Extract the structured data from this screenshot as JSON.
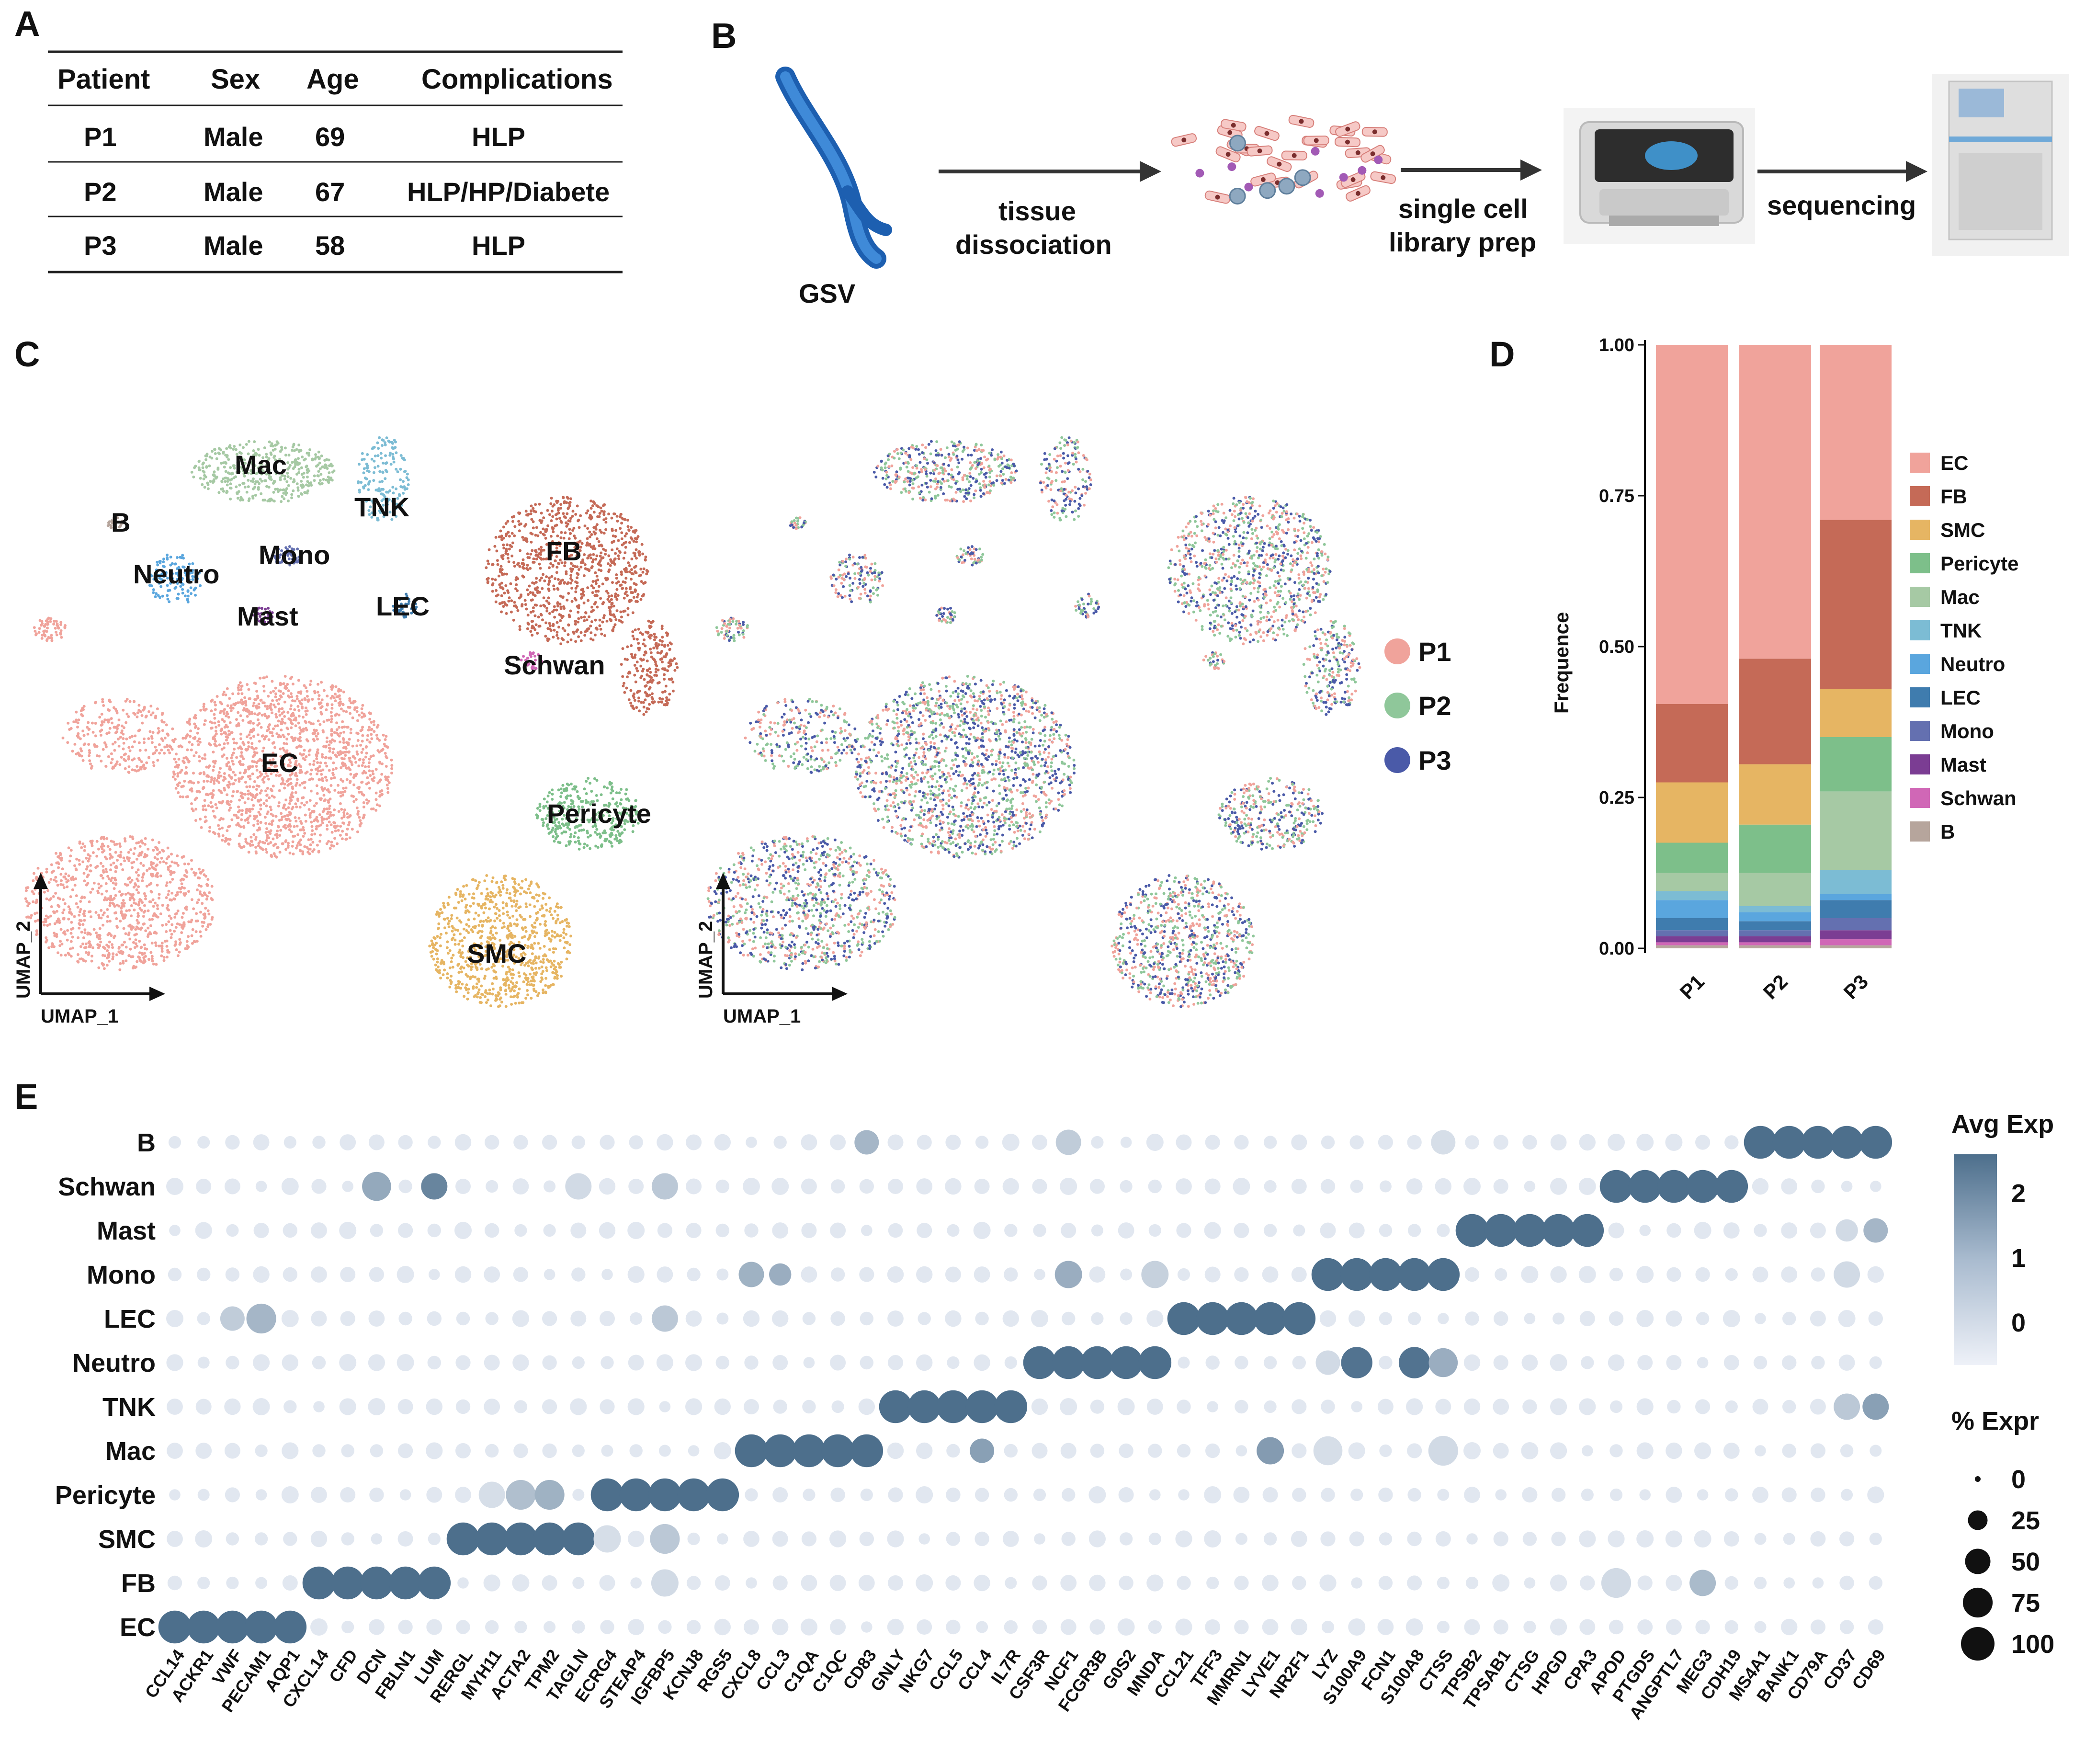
{
  "panels": {
    "a": "A",
    "b": "B",
    "c": "C",
    "d": "D",
    "e": "E"
  },
  "table": {
    "headers": [
      "Patient",
      "Sex",
      "Age",
      "Complications"
    ],
    "rows": [
      [
        "P1",
        "Male",
        "69",
        "HLP"
      ],
      [
        "P2",
        "Male",
        "67",
        "HLP/HP/Diabete"
      ],
      [
        "P3",
        "Male",
        "58",
        "HLP"
      ]
    ]
  },
  "workflow": {
    "gsv": "GSV",
    "step1_line1": "tissue",
    "step1_line2": "dissociation",
    "step2_line1": "single cell",
    "step2_line2": "library prep",
    "step3": "sequencing"
  },
  "umap": {
    "xlabel": "UMAP_1",
    "ylabel": "UMAP_2",
    "clusters": [
      "Mac",
      "TNK",
      "B",
      "Mono",
      "Neutro",
      "Mast",
      "LEC",
      "FB",
      "Schwan",
      "EC",
      "Pericyte",
      "SMC"
    ],
    "patient_legend": [
      "P1",
      "P2",
      "P3"
    ],
    "patient_colors": [
      "#f0a39b",
      "#8fc79a",
      "#4a5aa8"
    ]
  },
  "colors": {
    "EC": "#f0a39b",
    "FB": "#c56a57",
    "SMC": "#e6b563",
    "Pericyte": "#7dbf8a",
    "Mac": "#a6c9a4",
    "TNK": "#7cbcd4",
    "Neutro": "#5aa6de",
    "LEC": "#3f7cae",
    "Mono": "#6470b0",
    "Mast": "#7b3d93",
    "Schwan": "#d067b6",
    "B": "#b6a59c",
    "dot_low": "#e8ecf4",
    "dot_high": "#4d6f8c"
  },
  "chart_data": [
    {
      "type": "bar",
      "subtype": "stacked-proportion",
      "categories": [
        "P1",
        "P2",
        "P3"
      ],
      "ylabel": "Frequence",
      "xlabel": "",
      "ylim": [
        0,
        1
      ],
      "yticks": [
        "0.00",
        "0.25",
        "0.50",
        "0.75",
        "1.00"
      ],
      "legend": [
        "EC",
        "FB",
        "SMC",
        "Pericyte",
        "Mac",
        "TNK",
        "Neutro",
        "LEC",
        "Mono",
        "Mast",
        "Schwan",
        "B"
      ],
      "series": [
        {
          "name": "B",
          "values": [
            0.005,
            0.005,
            0.005
          ]
        },
        {
          "name": "Schwan",
          "values": [
            0.005,
            0.005,
            0.01
          ]
        },
        {
          "name": "Mast",
          "values": [
            0.01,
            0.01,
            0.015
          ]
        },
        {
          "name": "Mono",
          "values": [
            0.01,
            0.01,
            0.02
          ]
        },
        {
          "name": "LEC",
          "values": [
            0.02,
            0.015,
            0.03
          ]
        },
        {
          "name": "Neutro",
          "values": [
            0.03,
            0.015,
            0.01
          ]
        },
        {
          "name": "TNK",
          "values": [
            0.015,
            0.01,
            0.04
          ]
        },
        {
          "name": "Mac",
          "values": [
            0.03,
            0.055,
            0.13
          ]
        },
        {
          "name": "Pericyte",
          "values": [
            0.05,
            0.08,
            0.09
          ]
        },
        {
          "name": "SMC",
          "values": [
            0.1,
            0.1,
            0.08
          ]
        },
        {
          "name": "FB",
          "values": [
            0.13,
            0.175,
            0.28
          ]
        },
        {
          "name": "EC",
          "values": [
            0.595,
            0.52,
            0.29
          ]
        }
      ]
    },
    {
      "type": "dotplot",
      "title": "",
      "rows": [
        "B",
        "Schwan",
        "Mast",
        "Mono",
        "LEC",
        "Neutro",
        "TNK",
        "Mac",
        "Pericyte",
        "SMC",
        "FB",
        "EC"
      ],
      "genes": [
        "CCL14",
        "ACKR1",
        "VWF",
        "PECAM1",
        "AQP1",
        "CXCL14",
        "CFD",
        "DCN",
        "FBLN1",
        "LUM",
        "RERGL",
        "MYH11",
        "ACTA2",
        "TPM2",
        "TAGLN",
        "ECRG4",
        "STEAP4",
        "IGFBP5",
        "KCNJ8",
        "RGS5",
        "CXCL8",
        "CCL3",
        "C1QA",
        "C1QC",
        "CD83",
        "GNLY",
        "NKG7",
        "CCL5",
        "CCL4",
        "IL7R",
        "CSF3R",
        "NCF1",
        "FCGR3B",
        "G0S2",
        "MNDA",
        "CCL21",
        "TFF3",
        "MMRN1",
        "LYVE1",
        "NR2F1",
        "LYZ",
        "S100A9",
        "FCN1",
        "S100A8",
        "CTSS",
        "TPSB2",
        "TPSAB1",
        "CTSG",
        "HPGD",
        "CPA3",
        "APOD",
        "PTGDS",
        "ANGPTL7",
        "MEG3",
        "CDH19",
        "MS4A1",
        "BANK1",
        "CD79A",
        "CD37",
        "CD69"
      ],
      "marker_groups": {
        "EC": [
          0,
          5
        ],
        "FB": [
          5,
          10
        ],
        "SMC": [
          10,
          15
        ],
        "Pericyte": [
          15,
          20
        ],
        "Mac": [
          20,
          25
        ],
        "TNK": [
          25,
          30
        ],
        "Neutro": [
          30,
          35
        ],
        "LEC": [
          35,
          40
        ],
        "Mono": [
          40,
          45
        ],
        "Mast": [
          45,
          50
        ],
        "Schwan": [
          50,
          55
        ],
        "B": [
          55,
          60
        ]
      },
      "secondary": [
        {
          "row": "B",
          "gene": "CD83",
          "exp": 0.7,
          "pct": 45
        },
        {
          "row": "B",
          "gene": "NCF1",
          "exp": 0.2,
          "pct": 50
        },
        {
          "row": "B",
          "gene": "CTSS",
          "exp": -0.2,
          "pct": 45
        },
        {
          "row": "Schwan",
          "gene": "DCN",
          "exp": 1.0,
          "pct": 70
        },
        {
          "row": "Schwan",
          "gene": "LUM",
          "exp": 1.8,
          "pct": 55
        },
        {
          "row": "Schwan",
          "gene": "TAGLN",
          "exp": -0.1,
          "pct": 55
        },
        {
          "row": "Schwan",
          "gene": "IGFBP5",
          "exp": 0.3,
          "pct": 55
        },
        {
          "row": "Mast",
          "gene": "CD37",
          "exp": -0.1,
          "pct": 35
        },
        {
          "row": "Mast",
          "gene": "CD69",
          "exp": 0.7,
          "pct": 45
        },
        {
          "row": "Mono",
          "gene": "CXCL8",
          "exp": 0.8,
          "pct": 50
        },
        {
          "row": "Mono",
          "gene": "CCL3",
          "exp": 0.9,
          "pct": 35
        },
        {
          "row": "Mono",
          "gene": "NCF1",
          "exp": 0.9,
          "pct": 60
        },
        {
          "row": "Mono",
          "gene": "MNDA",
          "exp": 0.1,
          "pct": 60
        },
        {
          "row": "Mono",
          "gene": "CD37",
          "exp": -0.1,
          "pct": 55
        },
        {
          "row": "LEC",
          "gene": "VWF",
          "exp": 0.2,
          "pct": 45
        },
        {
          "row": "LEC",
          "gene": "PECAM1",
          "exp": 0.7,
          "pct": 75
        },
        {
          "row": "LEC",
          "gene": "IGFBP5",
          "exp": 0.3,
          "pct": 55
        },
        {
          "row": "Neutro",
          "gene": "LYZ",
          "exp": -0.1,
          "pct": 45
        },
        {
          "row": "Neutro",
          "gene": "S100A9",
          "exp": 2.2,
          "pct": 85
        },
        {
          "row": "Neutro",
          "gene": "S100A8",
          "exp": 2.2,
          "pct": 85
        },
        {
          "row": "Neutro",
          "gene": "CTSS",
          "exp": 0.9,
          "pct": 70
        },
        {
          "row": "TNK",
          "gene": "CD37",
          "exp": 0.3,
          "pct": 55
        },
        {
          "row": "TNK",
          "gene": "CD69",
          "exp": 1.2,
          "pct": 55
        },
        {
          "row": "Mac",
          "gene": "CCL4",
          "exp": 1.2,
          "pct": 45
        },
        {
          "row": "Mac",
          "gene": "LYVE1",
          "exp": 1.3,
          "pct": 60
        },
        {
          "row": "Mac",
          "gene": "LYZ",
          "exp": -0.2,
          "pct": 70
        },
        {
          "row": "Mac",
          "gene": "CTSS",
          "exp": -0.1,
          "pct": 75
        },
        {
          "row": "Pericyte",
          "gene": "MYH11",
          "exp": -0.2,
          "pct": 55
        },
        {
          "row": "Pericyte",
          "gene": "ACTA2",
          "exp": 0.5,
          "pct": 75
        },
        {
          "row": "Pericyte",
          "gene": "TPM2",
          "exp": 0.8,
          "pct": 75
        },
        {
          "row": "SMC",
          "gene": "ECRG4",
          "exp": -0.2,
          "pct": 60
        },
        {
          "row": "SMC",
          "gene": "IGFBP5",
          "exp": 0.3,
          "pct": 75
        },
        {
          "row": "FB",
          "gene": "IGFBP5",
          "exp": -0.1,
          "pct": 60
        },
        {
          "row": "FB",
          "gene": "APOD",
          "exp": -0.1,
          "pct": 75
        },
        {
          "row": "FB",
          "gene": "MEG3",
          "exp": 0.6,
          "pct": 55
        }
      ],
      "legend_exp_title": "Avg Exp",
      "legend_exp_ticks": [
        "2",
        "1",
        "0"
      ],
      "legend_pct_title": "% Expr",
      "legend_pct_ticks": [
        "0",
        "25",
        "50",
        "75",
        "100"
      ]
    }
  ]
}
